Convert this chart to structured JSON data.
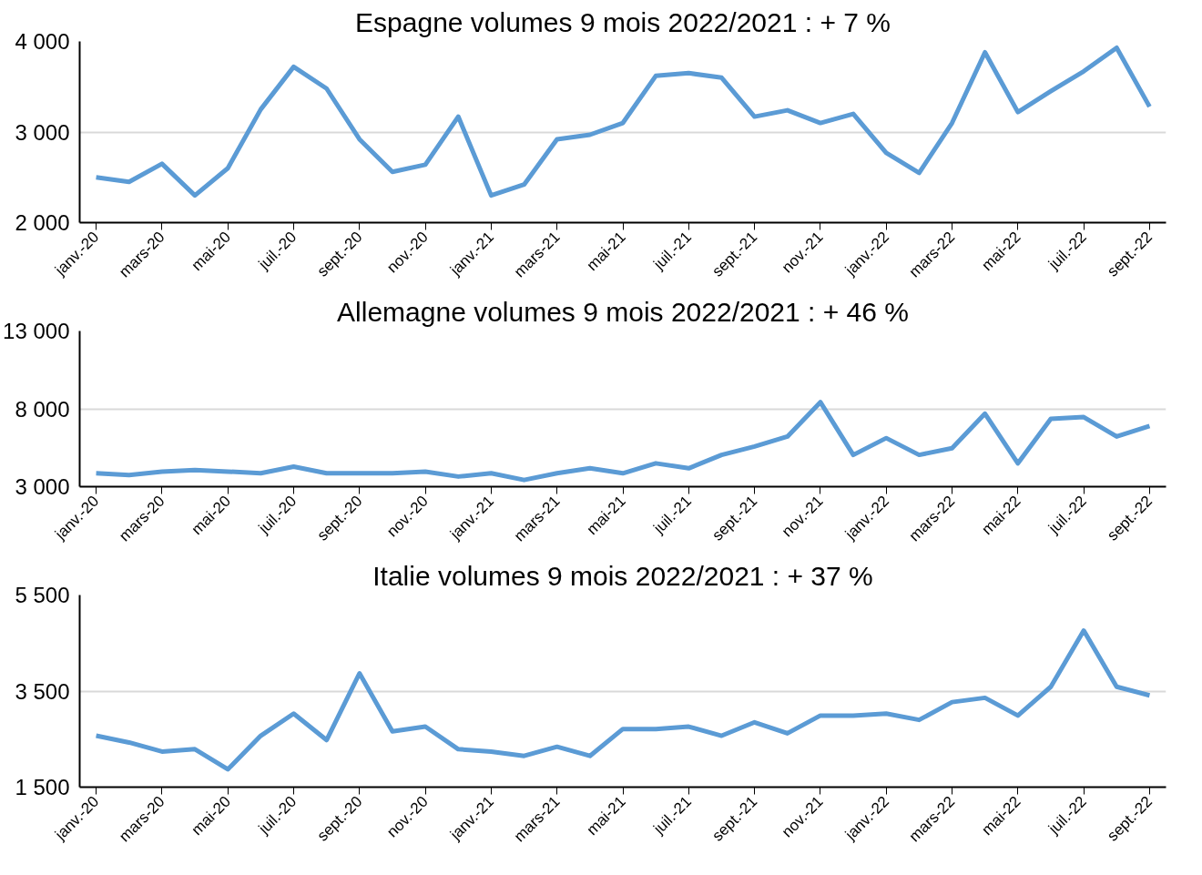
{
  "chart_data": [
    {
      "type": "line",
      "title": "Espagne volumes 9 mois 2022/2021 : + 7 %",
      "categories": [
        "janv.-20",
        null,
        "mars-20",
        null,
        "mai-20",
        null,
        "juil.-20",
        null,
        "sept.-20",
        null,
        "nov.-20",
        null,
        "janv.-21",
        null,
        "mars-21",
        null,
        "mai-21",
        null,
        "juil.-21",
        null,
        "sept.-21",
        null,
        "nov.-21",
        null,
        "janv.-22",
        null,
        "mars-22",
        null,
        "mai-22",
        null,
        "juil.-22",
        null,
        "sept.-22"
      ],
      "series": [
        {
          "color": "#5b9bd5",
          "values": [
            2500,
            2450,
            2650,
            2300,
            2600,
            3250,
            3720,
            3480,
            2920,
            2560,
            2640,
            3170,
            2300,
            2420,
            2920,
            2970,
            3100,
            3620,
            3650,
            3600,
            3170,
            3240,
            3100,
            3200,
            2770,
            2550,
            3100,
            3880,
            3220,
            3450,
            3670,
            3930,
            3280
          ]
        }
      ],
      "ylim": [
        2000,
        4000
      ],
      "yticks": [
        {
          "value": 2000,
          "label": "2 000"
        },
        {
          "value": 3000,
          "label": "3 000"
        },
        {
          "value": 4000,
          "label": "4 000"
        }
      ],
      "grid": "y",
      "line_style": "solid"
    },
    {
      "type": "line",
      "title": "Allemagne volumes 9 mois 2022/2021 : + 46 %",
      "categories": [
        "janv.-20",
        null,
        "mars-20",
        null,
        "mai-20",
        null,
        "juil.-20",
        null,
        "sept.-20",
        null,
        "nov.-20",
        null,
        "janv.-21",
        null,
        "mars-21",
        null,
        "mai-21",
        null,
        "juil.-21",
        null,
        "sept.-21",
        null,
        "nov.-21",
        null,
        "janv.-22",
        null,
        "mars-22",
        null,
        "mai-22",
        null,
        "juil.-22",
        null,
        "sept.-22"
      ],
      "series": [
        {
          "color": "#5b9bd5",
          "values": [
            3860,
            3750,
            3970,
            4070,
            3970,
            3860,
            4290,
            3860,
            3860,
            3860,
            3970,
            3650,
            3860,
            3430,
            3860,
            4180,
            3860,
            4500,
            4180,
            5040,
            5580,
            6220,
            8430,
            5040,
            6120,
            5040,
            5470,
            7690,
            4500,
            7360,
            7470,
            6220,
            6900
          ]
        }
      ],
      "ylim": [
        3000,
        13000
      ],
      "yticks": [
        {
          "value": 3000,
          "label": "3 000"
        },
        {
          "value": 8000,
          "label": "8 000"
        },
        {
          "value": 13000,
          "label": "13 000"
        }
      ],
      "grid": "y",
      "line_style": "solid"
    },
    {
      "type": "line",
      "title": "Italie volumes 9 mois 2022/2021 : + 37 %",
      "categories": [
        "janv.-20",
        null,
        "mars-20",
        null,
        "mai-20",
        null,
        "juil.-20",
        null,
        "sept.-20",
        null,
        "nov.-20",
        null,
        "janv.-21",
        null,
        "mars-21",
        null,
        "mai-21",
        null,
        "juil.-21",
        null,
        "sept.-21",
        null,
        "nov.-21",
        null,
        "janv.-22",
        null,
        "mars-22",
        null,
        "mai-22",
        null,
        "juil.-22",
        null,
        "sept.-22"
      ],
      "series": [
        {
          "color": "#5b9bd5",
          "values": [
            2570,
            2430,
            2240,
            2290,
            1870,
            2570,
            3030,
            2480,
            3870,
            2660,
            2760,
            2290,
            2240,
            2150,
            2340,
            2150,
            2710,
            2710,
            2760,
            2570,
            2850,
            2620,
            2990,
            2990,
            3030,
            2900,
            3270,
            3360,
            2990,
            3590,
            4760,
            3590,
            3410
          ]
        }
      ],
      "ylim": [
        1500,
        5500
      ],
      "yticks": [
        {
          "value": 1500,
          "label": "1 500"
        },
        {
          "value": 3500,
          "label": "3 500"
        },
        {
          "value": 5500,
          "label": "5 500"
        }
      ],
      "grid": "y",
      "line_style": "solid"
    }
  ]
}
